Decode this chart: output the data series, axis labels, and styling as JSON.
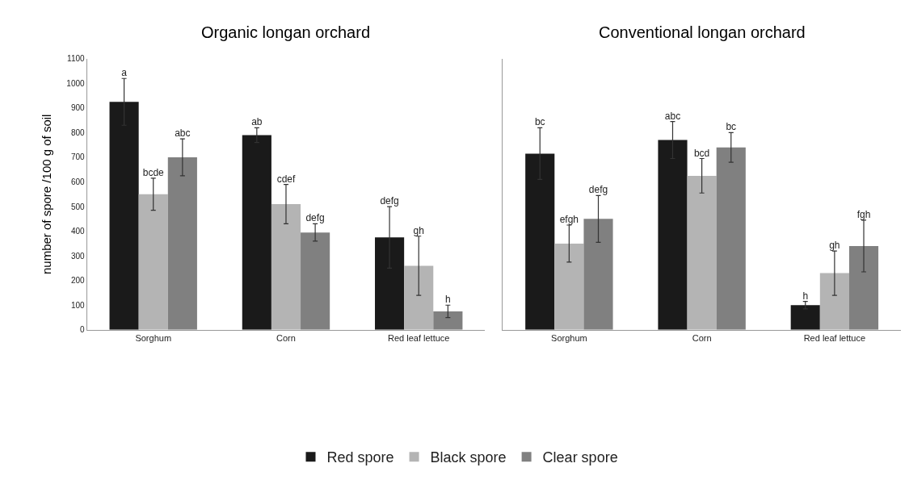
{
  "chart_data": [
    {
      "type": "bar",
      "title": "Organic longan orchard",
      "ylabel": "number of spore /100 g of soil",
      "categories": [
        "Sorghum",
        "Corn",
        "Red leaf lettuce"
      ],
      "ylim": [
        0,
        1100
      ],
      "yticks": [
        0,
        100,
        200,
        300,
        400,
        500,
        600,
        700,
        800,
        900,
        1000,
        1100
      ],
      "legend": "bottom",
      "series": [
        {
          "name": "Red spore",
          "color": "#1a1a1a",
          "values": [
            925,
            790,
            375
          ],
          "errors": [
            95,
            30,
            125
          ],
          "value_labels": [
            "a",
            "ab",
            "defg"
          ]
        },
        {
          "name": "Black spore",
          "color": "#b4b4b4",
          "values": [
            550,
            510,
            260
          ],
          "errors": [
            65,
            80,
            120
          ],
          "value_labels": [
            "bcde",
            "cdef",
            "gh"
          ]
        },
        {
          "name": "Clear spore",
          "color": "#808080",
          "values": [
            700,
            395,
            75
          ],
          "errors": [
            75,
            35,
            25
          ],
          "value_labels": [
            "abc",
            "defg",
            "h"
          ]
        }
      ]
    },
    {
      "type": "bar",
      "title": "Conventional longan orchard",
      "categories": [
        "Sorghum",
        "Corn",
        "Red leaf lettuce"
      ],
      "ylim": [
        0,
        1100
      ],
      "yticks": [
        0,
        100,
        200,
        300,
        400,
        500,
        600,
        700,
        800,
        900,
        1000,
        1100
      ],
      "tick_labels": "x",
      "series": [
        {
          "color": "#1a1a1a",
          "values": [
            715,
            770,
            100
          ],
          "errors": [
            105,
            75,
            15
          ],
          "value_labels": [
            "bc",
            "abc",
            "h"
          ]
        },
        {
          "color": "#b4b4b4",
          "values": [
            350,
            625,
            230
          ],
          "errors": [
            75,
            70,
            90
          ],
          "value_labels": [
            "efgh",
            "bcd",
            "gh"
          ]
        },
        {
          "color": "#808080",
          "values": [
            450,
            740,
            340
          ],
          "errors": [
            95,
            60,
            105
          ],
          "value_labels": [
            "defg",
            "bc",
            "fgh"
          ]
        }
      ]
    }
  ]
}
